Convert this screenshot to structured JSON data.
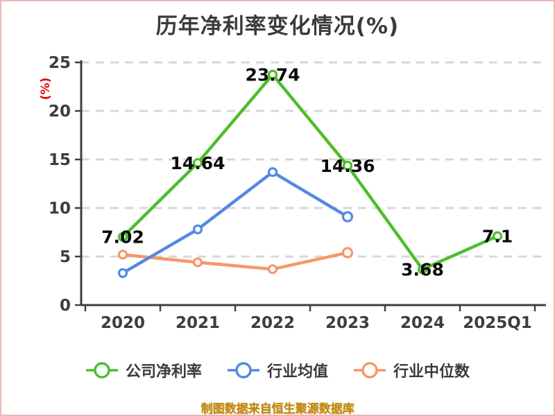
{
  "title": "历年净利率变化情况(%)",
  "y_axis_unit": "(%)",
  "source_caption": "制图数据来自恒生聚源数据库",
  "colors": {
    "title_text": "#3a3a3a",
    "axis_text": "#3d3d3d",
    "y_unit_red": "#e60000",
    "caption_gold": "#bd8a0b",
    "frame_border_pink": "#f2b5b5",
    "gridline_gray": "#d7d7d7"
  },
  "chart_data": {
    "type": "line",
    "title": "历年净利率变化情况(%)",
    "ylabel": "(%)",
    "xlabel": "",
    "categories": [
      "2020",
      "2021",
      "2022",
      "2023",
      "2024",
      "2025Q1"
    ],
    "series": [
      {
        "name": "公司净利率",
        "color": "#4cbe2c",
        "values": [
          7.02,
          14.64,
          23.74,
          14.36,
          3.68,
          7.1
        ],
        "point_labels": [
          "7.02",
          "14.64",
          "23.74",
          "14.36",
          "3.68",
          "7.1"
        ]
      },
      {
        "name": "行业均值",
        "color": "#5389e4",
        "values": [
          3.3,
          7.8,
          13.7,
          9.1,
          null,
          null
        ],
        "point_labels": []
      },
      {
        "name": "行业中位数",
        "color": "#f79767",
        "values": [
          5.2,
          4.4,
          3.7,
          5.4,
          null,
          null
        ],
        "point_labels": []
      }
    ],
    "ylim": [
      0,
      25
    ],
    "yticks": [
      0,
      5,
      10,
      15,
      20,
      25
    ],
    "grid": "horizontal-dashed",
    "marker": "circle-white-fill",
    "legend_position": "bottom"
  }
}
